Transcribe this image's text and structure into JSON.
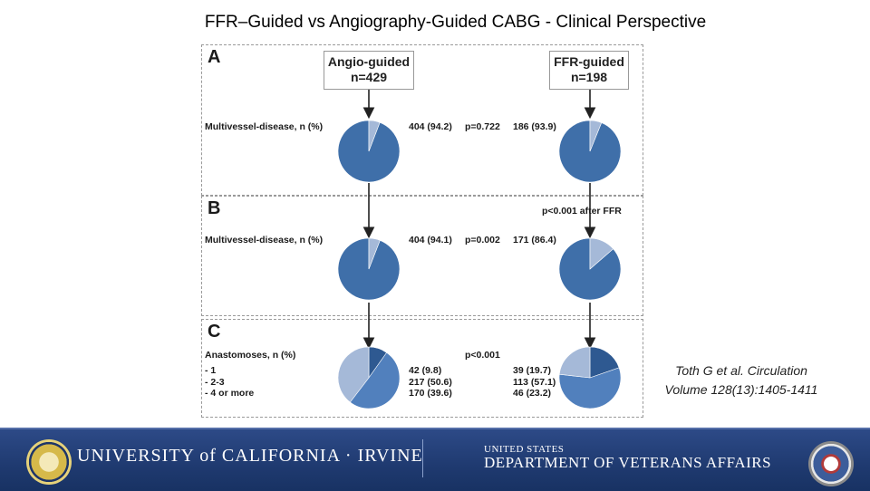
{
  "title": "FFR–Guided vs Angiography-Guided CABG - Clinical Perspective",
  "boxes": {
    "angio": {
      "line1": "Angio-guided",
      "line2": "n=429"
    },
    "ffr": {
      "line1": "FFR-guided",
      "line2": "n=198"
    }
  },
  "panels": [
    {
      "letter": "A",
      "label": "Multivessel-disease, n (%)",
      "left_value": "404 (94.2)",
      "p_value": "p=0.722",
      "right_value": "186 (93.9)",
      "left_pie": [
        94.2,
        5.8
      ],
      "right_pie": [
        93.9,
        6.1
      ]
    },
    {
      "letter": "B",
      "label": "Multivessel-disease, n (%)",
      "left_value": "404 (94.1)",
      "p_value": "p=0.002",
      "right_value": "171 (86.4)",
      "note": "p<0.001 after FFR",
      "left_pie": [
        94.1,
        5.9
      ],
      "right_pie": [
        86.4,
        13.6
      ]
    },
    {
      "letter": "C",
      "label": "Anastomoses, n (%)",
      "rows": [
        "- 1",
        "- 2-3",
        "- 4 or more"
      ],
      "left_values": [
        "42 (9.8)",
        "217 (50.6)",
        "170 (39.6)"
      ],
      "p_value": "p<0.001",
      "right_values": [
        "39 (19.7)",
        "113 (57.1)",
        "46 (23.2)"
      ],
      "left_pie": [
        9.8,
        50.6,
        39.6
      ],
      "right_pie": [
        19.7,
        57.1,
        23.2
      ]
    }
  ],
  "colors": {
    "pie_main": "#3f6fa9",
    "pie_light": "#a5b9d8",
    "pie_dark": "#2e5991",
    "pie_mid": "#5180bd",
    "footer": "#1f3a70"
  },
  "citation": {
    "line1": "Toth G et al. Circulation",
    "line2": "Volume 128(13):1405-1411"
  },
  "footer": {
    "uci": "UNIVERSITY of CALIFORNIA · IRVINE",
    "va_small": "UNITED STATES",
    "va_big": "DEPARTMENT OF VETERANS AFFAIRS"
  }
}
